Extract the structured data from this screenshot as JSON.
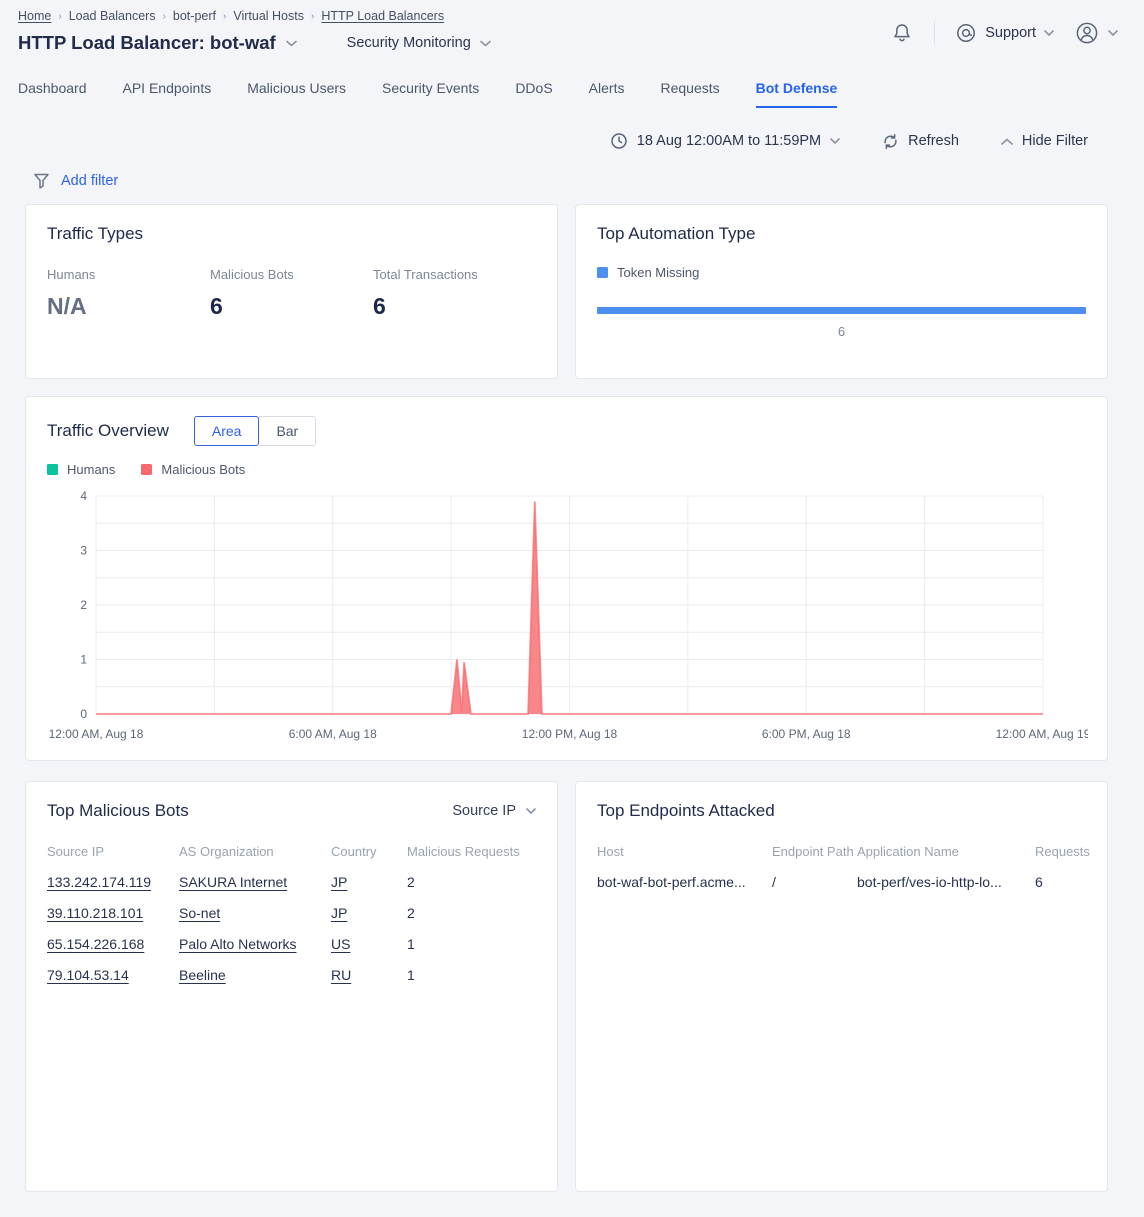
{
  "header": {
    "breadcrumb": [
      {
        "label": "Home",
        "link": true
      },
      {
        "label": "Load Balancers",
        "link": false
      },
      {
        "label": "bot-perf",
        "link": false
      },
      {
        "label": "Virtual Hosts",
        "link": false
      },
      {
        "label": "HTTP Load Balancers",
        "link": true
      }
    ],
    "title": "HTTP Load Balancer: bot-waf",
    "context_label": "Security Monitoring",
    "support_label": "Support"
  },
  "tabs": {
    "items": [
      "Dashboard",
      "API Endpoints",
      "Malicious Users",
      "Security Events",
      "DDoS",
      "Alerts",
      "Requests",
      "Bot Defense"
    ],
    "active": "Bot Defense"
  },
  "filter_bar": {
    "date_range": "18 Aug 12:00AM to 11:59PM",
    "refresh_label": "Refresh",
    "hide_filter_label": "Hide Filter",
    "add_filter_label": "Add filter"
  },
  "traffic_types": {
    "title": "Traffic Types",
    "stats": [
      {
        "label": "Humans",
        "value": "N/A",
        "muted": true
      },
      {
        "label": "Malicious Bots",
        "value": "6",
        "muted": false
      },
      {
        "label": "Total Transactions",
        "value": "6",
        "muted": false
      }
    ]
  },
  "top_automation": {
    "title": "Top Automation Type"
  },
  "traffic_overview": {
    "title": "Traffic Overview",
    "toggle": [
      "Area",
      "Bar"
    ],
    "active_toggle": "Area"
  },
  "top_malicious_bots": {
    "title": "Top Malicious Bots",
    "selector_label": "Source IP",
    "columns": [
      "Source IP",
      "AS Organization",
      "Country",
      "Malicious Requests"
    ],
    "link_columns": [
      0,
      1,
      2
    ],
    "rows": [
      [
        "133.242.174.119",
        "SAKURA Internet",
        "JP",
        "2"
      ],
      [
        "39.110.218.101",
        "So-net",
        "JP",
        "2"
      ],
      [
        "65.154.226.168",
        "Palo Alto Networks",
        "US",
        "1"
      ],
      [
        "79.104.53.14",
        "Beeline",
        "RU",
        "1"
      ]
    ]
  },
  "top_endpoints": {
    "title": "Top Endpoints Attacked",
    "columns": [
      "Host",
      "Endpoint Path",
      "Application Name",
      "Requests"
    ],
    "link_columns": [],
    "rows": [
      [
        "bot-waf-bot-perf.acme...",
        "/",
        "bot-perf/ves-io-http-lo...",
        "6"
      ]
    ]
  },
  "chart_data": [
    {
      "type": "bar",
      "orientation": "horizontal",
      "title": "Top Automation Type",
      "categories": [
        "Token Missing"
      ],
      "values": [
        6
      ],
      "xlim": [
        0,
        6
      ],
      "color": "#4d8ff0",
      "legend_position": "top-left",
      "value_labels": [
        "6"
      ]
    },
    {
      "type": "area",
      "title": "Traffic Overview",
      "xlabel": "",
      "ylabel": "",
      "x_unit": "hours from 12:00 AM Aug 18",
      "x_range": [
        0,
        24
      ],
      "ylim": [
        0,
        4
      ],
      "y_ticks": [
        0,
        1,
        2,
        3,
        4
      ],
      "grid": true,
      "grid_y_step": 0.5,
      "grid_x_step_hours": 3,
      "x_tick_labels": [
        {
          "h": 0,
          "label": "12:00 AM, Aug 18"
        },
        {
          "h": 6,
          "label": "6:00 AM, Aug 18"
        },
        {
          "h": 12,
          "label": "12:00 PM, Aug 18"
        },
        {
          "h": 18,
          "label": "6:00 PM, Aug 18"
        },
        {
          "h": 24,
          "label": "12:00 AM, Aug 19"
        }
      ],
      "legend_position": "top-left",
      "series": [
        {
          "name": "Humans",
          "color": "#0cc2a0",
          "points": []
        },
        {
          "name": "Malicious Bots",
          "color": "#f7696d",
          "points": [
            [
              0,
              0
            ],
            [
              9.0,
              0
            ],
            [
              9.15,
              1.0
            ],
            [
              9.27,
              0.05
            ],
            [
              9.33,
              0.95
            ],
            [
              9.5,
              0
            ],
            [
              10.95,
              0
            ],
            [
              11.12,
              3.9
            ],
            [
              11.3,
              0
            ],
            [
              24,
              0
            ]
          ]
        }
      ]
    }
  ]
}
